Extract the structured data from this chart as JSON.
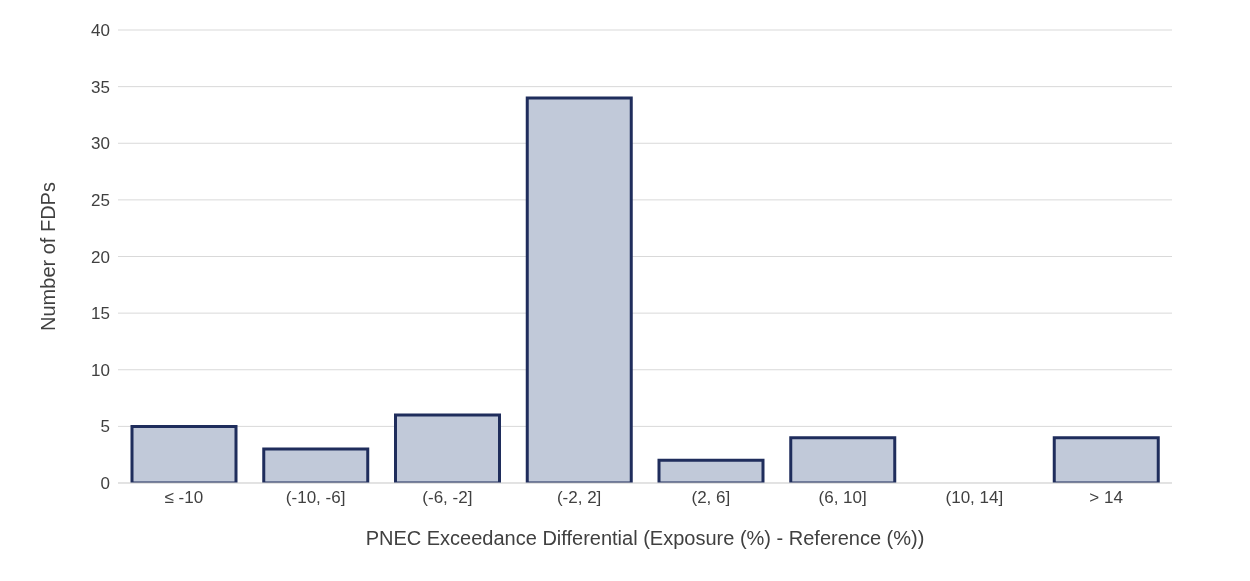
{
  "chart_data": {
    "type": "bar",
    "xlabel": "PNEC Exceedance Differential (Exposure (%) - Reference (%))",
    "ylabel": "Number of FDPs",
    "categories": [
      "≤ -10",
      "(-10, -6]",
      "(-6, -2]",
      "(-2, 2]",
      "(2, 6]",
      "(6, 10]",
      "(10, 14]",
      "> 14"
    ],
    "values": [
      5,
      3,
      6,
      34,
      2,
      4,
      0,
      4
    ],
    "color": "#c1c9d9",
    "ylim": [
      0,
      40
    ],
    "yticks": [
      0,
      5,
      10,
      15,
      20,
      25,
      30,
      35,
      40
    ],
    "grid": "y"
  }
}
